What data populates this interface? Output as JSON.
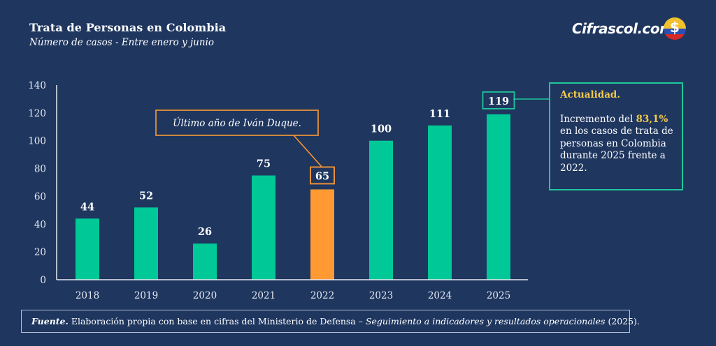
{
  "header": {
    "title": "Trata de Personas en Colombia",
    "subtitle": "Número de casos - Entre enero y junio"
  },
  "brand": {
    "name": "Cifrascol.com",
    "logo_icon": "colombia-flag-coin-dollar-icon",
    "logo_symbol": "$"
  },
  "colors": {
    "background": "#1f365f",
    "bar_default": "#00c896",
    "bar_highlight": "#ff9a33",
    "accent_yellow": "#f2c94c",
    "callout_green": "#1fc79a",
    "callout_orange": "#ff9a33"
  },
  "annotations": {
    "duque_callout": "Último año de Iván Duque.",
    "note": {
      "heading": "Actualidad.",
      "text_before": "Incremento del ",
      "highlight": "83,1%",
      "text_after": " en los casos de trata de personas en Colombia durante 2025 frente a 2022."
    }
  },
  "source": {
    "label": "Fuente.",
    "text": " Elaboración propia con base en cifras del Ministerio de Defensa – ",
    "italic_title": "Seguimiento a indicadores y resultados operacionales",
    "year": " (2025)."
  },
  "chart_data": {
    "type": "bar",
    "title": "Trata de Personas en Colombia",
    "subtitle": "Número de casos - Entre enero y junio",
    "xlabel": "",
    "ylabel": "",
    "categories": [
      "2018",
      "2019",
      "2020",
      "2021",
      "2022",
      "2023",
      "2024",
      "2025"
    ],
    "values": [
      44,
      52,
      26,
      75,
      65,
      100,
      111,
      119
    ],
    "highlight_index": 4,
    "boxed_labels": [
      4,
      7
    ],
    "ylim": [
      0,
      140
    ],
    "yticks": [
      0,
      20,
      40,
      60,
      80,
      100,
      120,
      140
    ],
    "grid": false,
    "legend": "none"
  }
}
